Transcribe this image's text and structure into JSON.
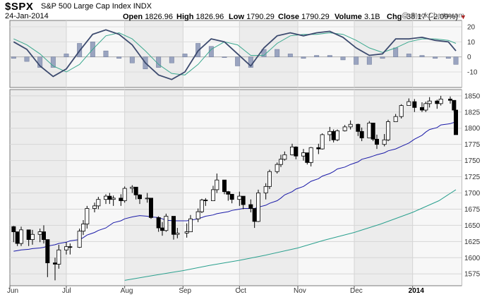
{
  "header": {
    "symbol": "$SPX",
    "name": "S&P 500 Large Cap Index",
    "exchange": "INDX",
    "date": "24-Jan-2014",
    "open_label": "Open",
    "open": "1826.96",
    "high_label": "High",
    "high": "1826.96",
    "low_label": "Low",
    "low": "1790.29",
    "close_label": "Close",
    "close": "1790.29",
    "volume_label": "Volume",
    "volume": "3.1B",
    "chg_label": "Chg",
    "chg": "-38.17 (-2.09%)",
    "watermark": "@ StockCharts.com"
  },
  "colors": {
    "panel_bg": "#ececec",
    "band_bg": "#f7f7f7",
    "sma_short": "#1a1aa8",
    "sma_long": "#2aa08e",
    "macd": "#3c4a6e",
    "signal": "#3aa88e",
    "histogram": "#9aa4c0",
    "down_marker": "#c00000"
  },
  "chart_data": [
    {
      "type": "line",
      "panel": "MACD",
      "series": [
        {
          "x": [
            "2013-06-03",
            "2013-06-10",
            "2013-06-17",
            "2013-06-24",
            "2013-07-01",
            "2013-07-08",
            "2013-07-15",
            "2013-07-22",
            "2013-07-29",
            "2013-08-05",
            "2013-08-12",
            "2013-08-19",
            "2013-08-26",
            "2013-09-02",
            "2013-09-09",
            "2013-09-16",
            "2013-09-23",
            "2013-09-30",
            "2013-10-07",
            "2013-10-14",
            "2013-10-21",
            "2013-10-28",
            "2013-11-04",
            "2013-11-11",
            "2013-11-18",
            "2013-11-25",
            "2013-12-02",
            "2013-12-09",
            "2013-12-16",
            "2013-12-23",
            "2013-12-30",
            "2014-01-06",
            "2014-01-13",
            "2014-01-20",
            "2014-01-24"
          ],
          "values": [
            10,
            5,
            -6,
            -13,
            -8,
            4,
            15,
            18,
            15,
            8,
            -4,
            -12,
            -15,
            -10,
            4,
            12,
            10,
            2,
            -6,
            6,
            14,
            16,
            14,
            16,
            17,
            13,
            6,
            1,
            2,
            12,
            12,
            13,
            11,
            10,
            4
          ]
        },
        {
          "x": [
            "2013-06-03",
            "2013-06-10",
            "2013-06-17",
            "2013-06-24",
            "2013-07-01",
            "2013-07-08",
            "2013-07-15",
            "2013-07-22",
            "2013-07-29",
            "2013-08-05",
            "2013-08-12",
            "2013-08-19",
            "2013-08-26",
            "2013-09-02",
            "2013-09-09",
            "2013-09-16",
            "2013-09-23",
            "2013-09-30",
            "2013-10-07",
            "2013-10-14",
            "2013-10-21",
            "2013-10-28",
            "2013-11-04",
            "2013-11-11",
            "2013-11-18",
            "2013-11-25",
            "2013-12-02",
            "2013-12-09",
            "2013-12-16",
            "2013-12-23",
            "2013-12-30",
            "2014-01-06",
            "2014-01-13",
            "2014-01-20",
            "2014-01-24"
          ],
          "values": [
            12,
            8,
            2,
            -6,
            -10,
            -5,
            5,
            14,
            16,
            12,
            4,
            -5,
            -11,
            -12,
            -5,
            5,
            10,
            8,
            1,
            1,
            9,
            14,
            15,
            15,
            16,
            15,
            11,
            6,
            3,
            6,
            10,
            12,
            12,
            11,
            9
          ]
        }
      ],
      "histogram": [
        -1,
        -3,
        -7,
        -7,
        2,
        9,
        10,
        4,
        -1,
        -4,
        -8,
        -7,
        -4,
        2,
        9,
        7,
        0,
        -6,
        -7,
        5,
        5,
        2,
        -1,
        1,
        1,
        -2,
        -5,
        -5,
        -1,
        6,
        2,
        1,
        -1,
        -1,
        -5
      ],
      "ylim": [
        -10,
        20
      ],
      "yticks": [
        "20",
        "10",
        "0",
        "-10"
      ]
    },
    {
      "type": "candlestick",
      "panel": "price",
      "x": [
        "2013-06-03",
        "2013-06-05",
        "2013-06-07",
        "2013-06-11",
        "2013-06-13",
        "2013-06-17",
        "2013-06-19",
        "2013-06-21",
        "2013-06-25",
        "2013-06-27",
        "2013-07-01",
        "2013-07-03",
        "2013-07-08",
        "2013-07-10",
        "2013-07-12",
        "2013-07-16",
        "2013-07-18",
        "2013-07-22",
        "2013-07-24",
        "2013-07-26",
        "2013-07-30",
        "2013-08-01",
        "2013-08-05",
        "2013-08-07",
        "2013-08-09",
        "2013-08-13",
        "2013-08-15",
        "2013-08-19",
        "2013-08-21",
        "2013-08-23",
        "2013-08-27",
        "2013-08-29",
        "2013-09-03",
        "2013-09-05",
        "2013-09-09",
        "2013-09-11",
        "2013-09-13",
        "2013-09-17",
        "2013-09-19",
        "2013-09-23",
        "2013-09-25",
        "2013-09-27",
        "2013-10-01",
        "2013-10-03",
        "2013-10-07",
        "2013-10-09",
        "2013-10-11",
        "2013-10-15",
        "2013-10-17",
        "2013-10-21",
        "2013-10-23",
        "2013-10-25",
        "2013-10-29",
        "2013-10-31",
        "2013-11-04",
        "2013-11-06",
        "2013-11-08",
        "2013-11-12",
        "2013-11-14",
        "2013-11-18",
        "2013-11-20",
        "2013-11-22",
        "2013-11-26",
        "2013-11-29",
        "2013-12-03",
        "2013-12-05",
        "2013-12-09",
        "2013-12-11",
        "2013-12-13",
        "2013-12-17",
        "2013-12-19",
        "2013-12-23",
        "2013-12-26",
        "2013-12-30",
        "2014-01-02",
        "2014-01-06",
        "2014-01-08",
        "2014-01-10",
        "2014-01-14",
        "2014-01-16",
        "2014-01-21",
        "2014-01-23",
        "2014-01-24"
      ],
      "close": [
        1640,
        1622,
        1643,
        1628,
        1636,
        1640,
        1628,
        1592,
        1590,
        1612,
        1617,
        1616,
        1641,
        1652,
        1676,
        1680,
        1690,
        1695,
        1690,
        1692,
        1688,
        1707,
        1709,
        1697,
        1691,
        1692,
        1662,
        1646,
        1642,
        1664,
        1636,
        1638,
        1640,
        1660,
        1671,
        1689,
        1688,
        1705,
        1720,
        1702,
        1698,
        1690,
        1695,
        1682,
        1676,
        1656,
        1700,
        1710,
        1733,
        1744,
        1752,
        1759,
        1771,
        1757,
        1762,
        1747,
        1770,
        1768,
        1790,
        1795,
        1782,
        1796,
        1802,
        1806,
        1795,
        1785,
        1808,
        1783,
        1775,
        1782,
        1810,
        1818,
        1835,
        1841,
        1832,
        1828,
        1838,
        1842,
        1838,
        1845,
        1843,
        1828,
        1790
      ],
      "high": [
        1649,
        1640,
        1648,
        1640,
        1643,
        1645,
        1650,
        1610,
        1600,
        1620,
        1624,
        1622,
        1645,
        1658,
        1680,
        1685,
        1694,
        1698,
        1700,
        1696,
        1698,
        1710,
        1712,
        1705,
        1698,
        1700,
        1690,
        1664,
        1655,
        1668,
        1650,
        1646,
        1653,
        1666,
        1676,
        1691,
        1692,
        1711,
        1730,
        1712,
        1703,
        1698,
        1702,
        1695,
        1690,
        1676,
        1705,
        1715,
        1736,
        1747,
        1759,
        1764,
        1776,
        1772,
        1768,
        1762,
        1771,
        1776,
        1792,
        1802,
        1798,
        1798,
        1805,
        1812,
        1807,
        1801,
        1811,
        1806,
        1790,
        1791,
        1813,
        1822,
        1837,
        1846,
        1845,
        1840,
        1841,
        1848,
        1844,
        1850,
        1849,
        1842,
        1827
      ],
      "low": [
        1624,
        1618,
        1618,
        1618,
        1620,
        1624,
        1622,
        1570,
        1565,
        1583,
        1605,
        1605,
        1615,
        1635,
        1645,
        1670,
        1675,
        1683,
        1683,
        1680,
        1680,
        1685,
        1700,
        1690,
        1683,
        1685,
        1660,
        1640,
        1634,
        1640,
        1628,
        1630,
        1631,
        1640,
        1655,
        1669,
        1680,
        1688,
        1700,
        1698,
        1688,
        1684,
        1680,
        1675,
        1670,
        1646,
        1655,
        1690,
        1706,
        1730,
        1740,
        1750,
        1758,
        1752,
        1750,
        1744,
        1741,
        1760,
        1767,
        1780,
        1778,
        1780,
        1795,
        1798,
        1788,
        1780,
        1785,
        1780,
        1768,
        1772,
        1780,
        1810,
        1815,
        1835,
        1825,
        1825,
        1825,
        1832,
        1830,
        1835,
        1838,
        1825,
        1790
      ],
      "sma_50": [
        1610,
        1611,
        1612,
        1613,
        1614,
        1615,
        1616,
        1618,
        1620,
        1622,
        1624,
        1626,
        1628,
        1631,
        1635,
        1639,
        1642,
        1646,
        1650,
        1654,
        1657,
        1660,
        1663,
        1664,
        1665,
        1664,
        1663,
        1662,
        1660,
        1658,
        1657,
        1657,
        1657,
        1658,
        1660,
        1662,
        1664,
        1666,
        1668,
        1670,
        1671,
        1673,
        1675,
        1676,
        1676,
        1676,
        1678,
        1681,
        1684,
        1688,
        1692,
        1697,
        1702,
        1706,
        1710,
        1714,
        1718,
        1722,
        1726,
        1730,
        1733,
        1737,
        1740,
        1744,
        1748,
        1752,
        1755,
        1757,
        1759,
        1762,
        1765,
        1768,
        1772,
        1777,
        1783,
        1789,
        1794,
        1798,
        1801,
        1805,
        1807,
        1809,
        1810
      ],
      "sma_200_x": [
        "2013-08-01",
        "2013-08-15",
        "2013-09-01",
        "2013-09-15",
        "2013-10-01",
        "2013-10-15",
        "2013-11-01",
        "2013-11-15",
        "2013-12-01",
        "2013-12-15",
        "2014-01-01",
        "2014-01-15",
        "2014-01-24"
      ],
      "sma_200": [
        1565,
        1572,
        1580,
        1588,
        1596,
        1604,
        1615,
        1627,
        1639,
        1652,
        1670,
        1688,
        1705
      ],
      "ylim": [
        1560,
        1852
      ],
      "yticks": [
        "1850",
        "1825",
        "1800",
        "1775",
        "1750",
        "1725",
        "1700",
        "1675",
        "1650",
        "1625",
        "1600",
        "1575"
      ],
      "xticks": [
        "Jun",
        "Jul",
        "Aug",
        "Sep",
        "Oct",
        "Nov",
        "Dec",
        "2014",
        "Jan"
      ]
    }
  ]
}
